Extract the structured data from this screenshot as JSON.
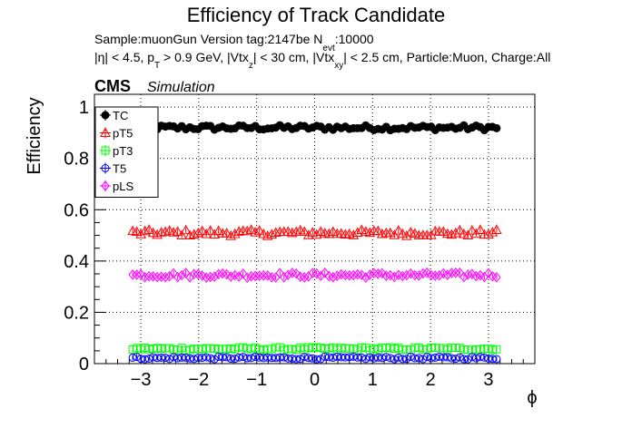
{
  "chart_data": {
    "type": "scatter",
    "title": "Efficiency of Track Candidate",
    "subtitle_line1": {
      "main": "Sample:muonGun   Version tag:2147be  N",
      "sub": "evt",
      "tail": ":10000"
    },
    "subtitle_line2": {
      "p1": "|η| < 4.5, p",
      "s1": "T",
      "p2": " > 0.9 GeV, |Vtx",
      "s2": "z",
      "p3": "| < 30 cm, |Vtx",
      "s3": "xy",
      "p4": "| < 2.5 cm, Particle:Muon, Charge:All"
    },
    "cms_label": "CMS",
    "cms_sublabel": "Simulation",
    "xlabel": "ϕ",
    "ylabel": "Efficiency",
    "xlim": [
      -3.8,
      3.8
    ],
    "ylim": [
      0,
      1.05
    ],
    "x_ticks": [
      -3,
      -2,
      -1,
      0,
      1,
      2,
      3
    ],
    "x_tick_labels": [
      "−3",
      "−2",
      "−1",
      "0",
      "1",
      "2",
      "3"
    ],
    "y_ticks": [
      0,
      0.2,
      0.4,
      0.6,
      0.8,
      1
    ],
    "y_tick_labels": [
      "0",
      "0.2",
      "0.4",
      "0.6",
      "0.8",
      "1"
    ],
    "grid": true,
    "legend_position": "top-left",
    "x_range_of_points": [
      -3.14,
      3.14
    ],
    "n_points": 90,
    "series": [
      {
        "name": "TC",
        "marker": "circle-filled",
        "color": "#000000",
        "mean": 0.92,
        "spread": 0.01
      },
      {
        "name": "pT5",
        "marker": "triangle-open",
        "color": "#ff0000",
        "mean": 0.51,
        "spread": 0.012
      },
      {
        "name": "pT3",
        "marker": "square-open",
        "color": "#00ff00",
        "mean": 0.058,
        "spread": 0.006
      },
      {
        "name": "T5",
        "marker": "circle-open",
        "color": "#0000ff",
        "mean": 0.022,
        "spread": 0.005
      },
      {
        "name": "pLS",
        "marker": "diamond-open",
        "color": "#ff00ff",
        "mean": 0.345,
        "spread": 0.01
      }
    ]
  }
}
